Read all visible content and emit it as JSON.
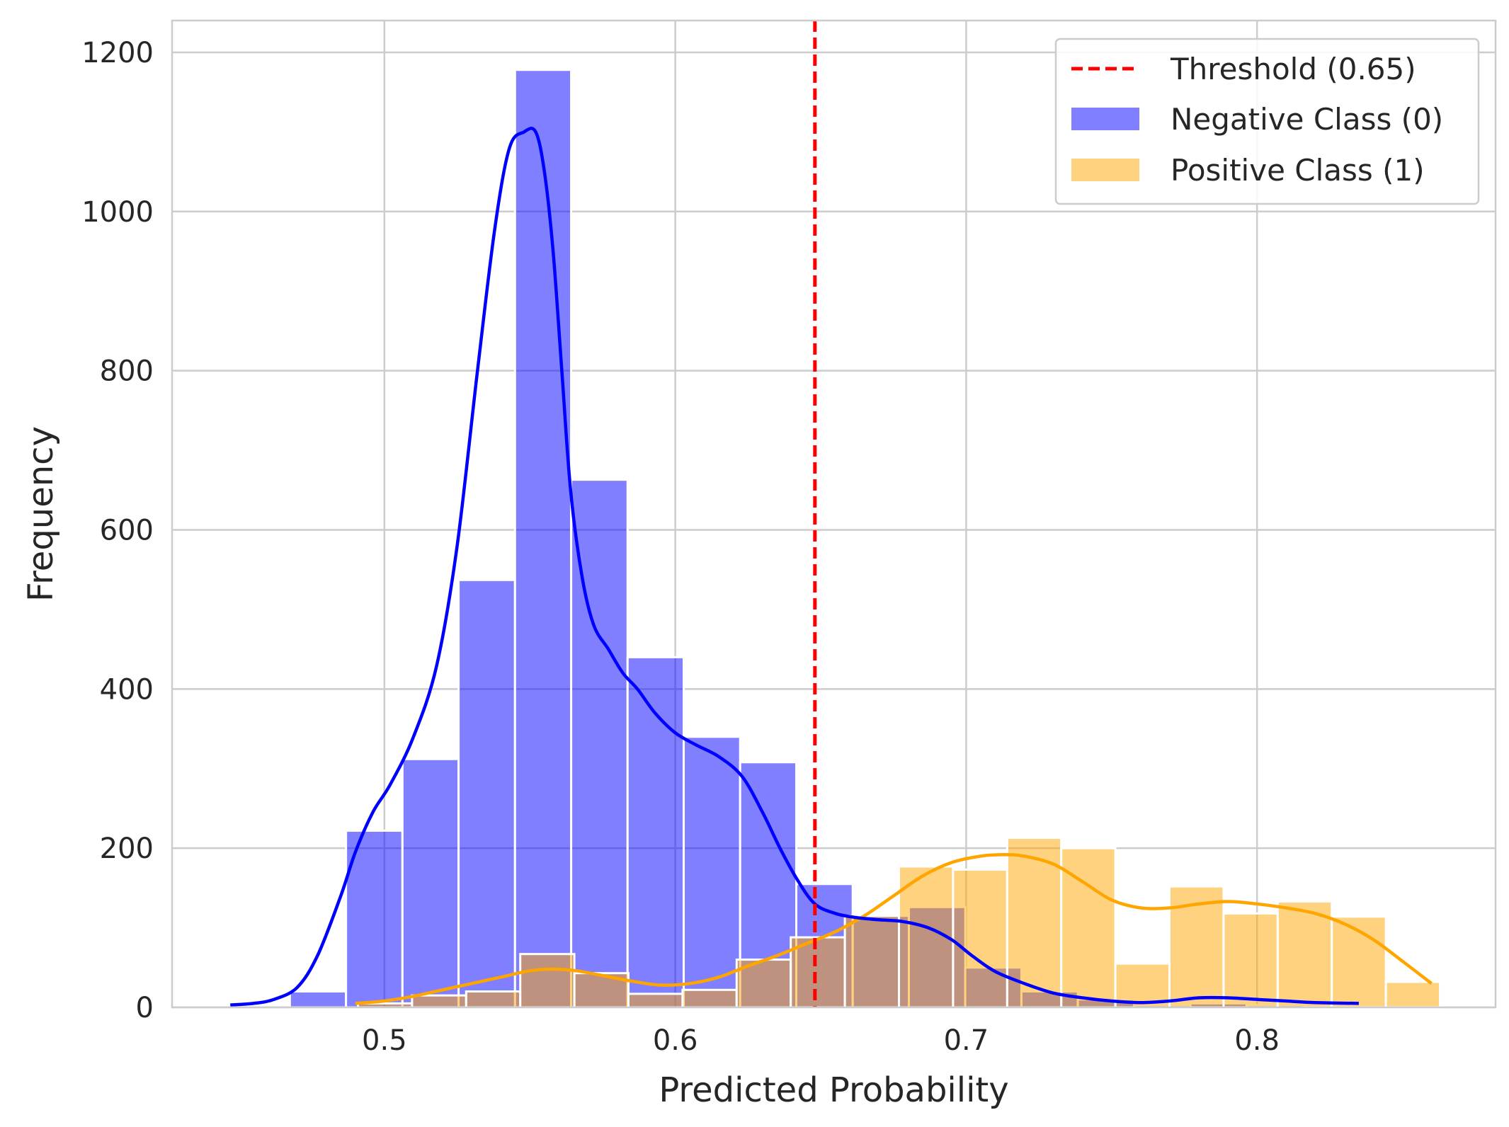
{
  "chart_data": {
    "type": "bar",
    "title": "",
    "xlabel": "Predicted Probability",
    "ylabel": "Frequency",
    "xlim": [
      0.427,
      0.882
    ],
    "ylim": [
      0,
      1240
    ],
    "xticks": [
      0.5,
      0.6,
      0.7,
      0.8
    ],
    "xtick_labels": [
      "0.5",
      "0.6",
      "0.7",
      "0.8"
    ],
    "yticks": [
      0,
      200,
      400,
      600,
      800,
      1000,
      1200
    ],
    "ytick_labels": [
      "0",
      "200",
      "400",
      "600",
      "800",
      "1000",
      "1200"
    ],
    "grid": true,
    "legend_position": "top-right",
    "threshold": {
      "name": "Threshold (0.65)",
      "value": 0.648,
      "color": "#ff0000"
    },
    "series": [
      {
        "name": "Negative Class (0)",
        "color": "#0000ff",
        "bin_edges": [
          0.4675,
          0.4868,
          0.5062,
          0.5255,
          0.5449,
          0.5642,
          0.5836,
          0.6029,
          0.6223,
          0.6416,
          0.661,
          0.6803,
          0.6997,
          0.719,
          0.7384,
          0.7577,
          0.7771,
          0.7964,
          0.8158,
          0.8351
        ],
        "counts": [
          20,
          222,
          312,
          537,
          1178,
          663,
          440,
          340,
          308,
          155,
          115,
          126,
          50,
          20,
          10,
          3,
          5,
          3,
          1
        ],
        "kde": {
          "x": [
            0.447,
            0.455,
            0.462,
            0.47,
            0.477,
            0.485,
            0.49,
            0.496,
            0.502,
            0.51,
            0.518,
            0.525,
            0.532,
            0.538,
            0.543,
            0.548,
            0.552,
            0.555,
            0.558,
            0.561,
            0.564,
            0.568,
            0.572,
            0.577,
            0.582,
            0.587,
            0.593,
            0.6,
            0.607,
            0.615,
            0.623,
            0.63,
            0.636,
            0.642,
            0.648,
            0.655,
            0.662,
            0.67,
            0.678,
            0.687,
            0.695,
            0.702,
            0.71,
            0.72,
            0.73,
            0.74,
            0.75,
            0.76,
            0.77,
            0.78,
            0.79,
            0.8,
            0.81,
            0.82,
            0.835
          ],
          "y": [
            3,
            5,
            10,
            25,
            65,
            140,
            195,
            245,
            280,
            340,
            430,
            580,
            800,
            980,
            1080,
            1100,
            1100,
            1050,
            950,
            800,
            650,
            540,
            480,
            450,
            420,
            400,
            370,
            345,
            330,
            315,
            290,
            245,
            200,
            160,
            130,
            118,
            113,
            110,
            108,
            100,
            85,
            65,
            45,
            30,
            18,
            12,
            8,
            6,
            8,
            12,
            12,
            10,
            8,
            6,
            5
          ]
        }
      },
      {
        "name": "Positive Class (1)",
        "color": "#ffa500",
        "bin_edges": [
          0.4909,
          0.5095,
          0.5281,
          0.5467,
          0.5653,
          0.5839,
          0.6025,
          0.6211,
          0.6397,
          0.6583,
          0.6769,
          0.6955,
          0.7141,
          0.7327,
          0.7513,
          0.7699,
          0.7885,
          0.8071,
          0.8257,
          0.8443,
          0.8629
        ],
        "counts": [
          5,
          15,
          20,
          67,
          43,
          17,
          22,
          60,
          88,
          115,
          177,
          173,
          213,
          200,
          55,
          152,
          118,
          133,
          114,
          32
        ],
        "kde": {
          "x": [
            0.49,
            0.5,
            0.51,
            0.52,
            0.53,
            0.54,
            0.55,
            0.558,
            0.566,
            0.575,
            0.585,
            0.595,
            0.605,
            0.615,
            0.625,
            0.635,
            0.645,
            0.655,
            0.665,
            0.675,
            0.685,
            0.695,
            0.705,
            0.713,
            0.72,
            0.73,
            0.74,
            0.75,
            0.76,
            0.77,
            0.78,
            0.79,
            0.8,
            0.81,
            0.82,
            0.83,
            0.84,
            0.85,
            0.86
          ],
          "y": [
            5,
            8,
            14,
            22,
            30,
            38,
            46,
            48,
            46,
            40,
            33,
            28,
            30,
            38,
            52,
            65,
            80,
            95,
            115,
            140,
            165,
            182,
            190,
            192,
            190,
            180,
            158,
            135,
            125,
            125,
            130,
            133,
            130,
            125,
            118,
            105,
            85,
            58,
            30
          ]
        }
      }
    ]
  }
}
